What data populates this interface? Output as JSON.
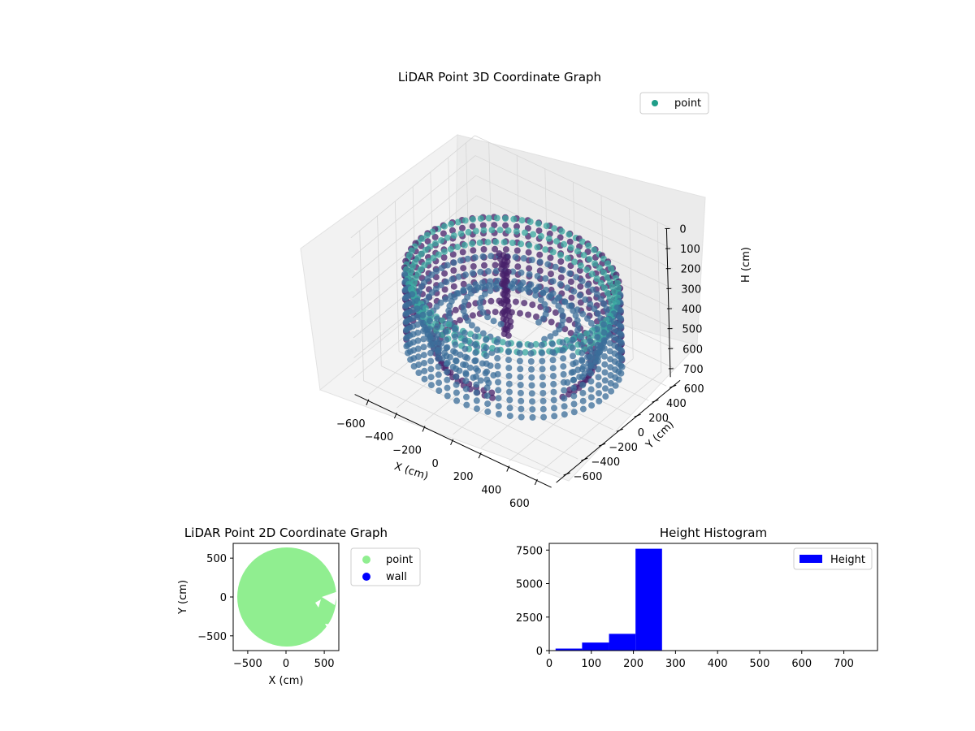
{
  "chart_data": [
    {
      "type": "scatter",
      "title": "LiDAR Point 3D Coordinate Graph",
      "xlabel": "X (cm)",
      "ylabel": "Y (cm)",
      "zlabel": "H (cm)",
      "xlim": [
        -700,
        700
      ],
      "ylim": [
        -700,
        700
      ],
      "zlim": [
        750,
        0
      ],
      "x_ticks": [
        "−600",
        "−400",
        "−200",
        "0",
        "200",
        "400",
        "600"
      ],
      "y_ticks": [
        "−600",
        "−400",
        "−200",
        "0",
        "200",
        "400",
        "600"
      ],
      "z_ticks": [
        "0",
        "100",
        "200",
        "300",
        "400",
        "500",
        "600",
        "700"
      ],
      "series": [
        {
          "name": "point",
          "rings": [
            {
              "radius": 640,
              "height": 240
            },
            {
              "radius": 620,
              "height": 290
            },
            {
              "radius": 600,
              "height": 340
            },
            {
              "radius": 580,
              "height": 400
            },
            {
              "radius": 550,
              "height": 460
            },
            {
              "radius": 520,
              "height": 520
            },
            {
              "radius": 490,
              "height": 580
            },
            {
              "radius": 460,
              "height": 620
            },
            {
              "radius": 390,
              "height": 430
            },
            {
              "radius": 300,
              "height": 400
            },
            {
              "radius": 200,
              "height": 370
            }
          ],
          "gap_angle_deg": [
            -70,
            -20
          ],
          "object_cluster": {
            "x": -80,
            "y": 40,
            "h_min": 140,
            "h_max": 560
          }
        }
      ],
      "colors": {
        "light": "#3aa8a0",
        "mid": "#3b6e9a",
        "dark": "#47206a",
        "legend": "#1f9e89"
      },
      "legend": "top-right",
      "grid": true
    },
    {
      "type": "scatter",
      "title": "LiDAR Point 2D Coordinate Graph",
      "xlabel": "X (cm)",
      "ylabel": "Y (cm)",
      "xlim": [
        -690,
        690
      ],
      "ylim": [
        -690,
        690
      ],
      "x_ticks": [
        -500,
        0,
        500
      ],
      "y_ticks": [
        -500,
        0,
        500
      ],
      "series": [
        {
          "name": "point",
          "color": "#90ee90",
          "shape": "disk",
          "radius": 640
        },
        {
          "name": "wall",
          "color": "#0000ff",
          "count": 0
        }
      ],
      "legend": "outside-right"
    },
    {
      "type": "bar",
      "title": "Height Histogram",
      "xlabel": "",
      "ylabel": "",
      "xlim": [
        0,
        780
      ],
      "ylim": [
        0,
        8000
      ],
      "x_ticks": [
        0,
        100,
        200,
        300,
        400,
        500,
        600,
        700
      ],
      "y_ticks": [
        0,
        2500,
        5000,
        7500
      ],
      "bins": [
        {
          "x0": 15,
          "x1": 78,
          "value": 150
        },
        {
          "x0": 78,
          "x1": 142,
          "value": 600
        },
        {
          "x0": 142,
          "x1": 205,
          "value": 1250
        },
        {
          "x0": 205,
          "x1": 268,
          "value": 7600
        }
      ],
      "series": [
        {
          "name": "Height",
          "color": "#0000ff"
        }
      ],
      "legend": "top-right"
    }
  ]
}
